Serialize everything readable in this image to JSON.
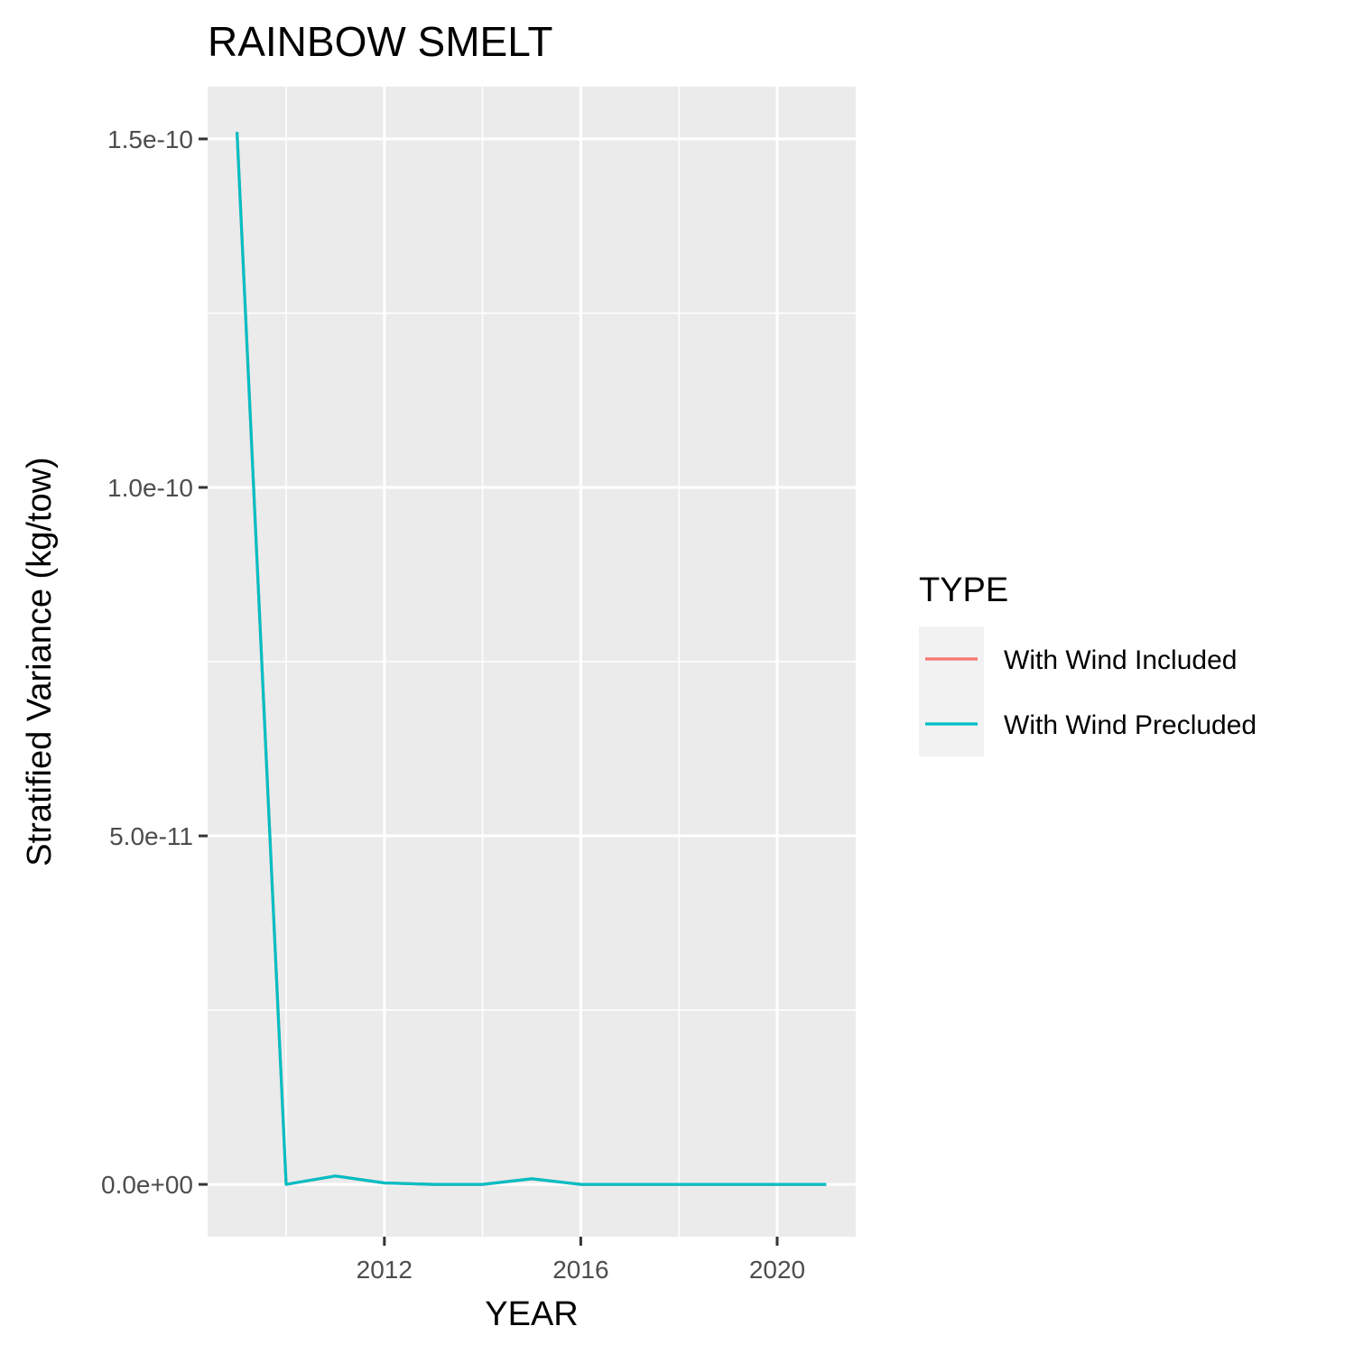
{
  "chart_data": {
    "type": "line",
    "title": "RAINBOW SMELT",
    "xlabel": "YEAR",
    "ylabel": "Stratified Variance (kg/tow)",
    "xlim": [
      2008.4,
      2021.6
    ],
    "ylim": [
      -7.5e-12,
      1.575e-10
    ],
    "x_ticks": [
      2012,
      2016,
      2020
    ],
    "x_tick_labels": [
      "2012",
      "2016",
      "2020"
    ],
    "x_minor": [
      2010,
      2014,
      2018
    ],
    "y_ticks": [
      0,
      5e-11,
      1e-10,
      1.5e-10
    ],
    "y_tick_labels": [
      "0.0e+00",
      "5.0e-11",
      "1.0e-10",
      "1.5e-10"
    ],
    "y_minor": [
      2.5e-11,
      7.5e-11,
      1.25e-10
    ],
    "grid": true,
    "legend": {
      "title": "TYPE",
      "position": "right"
    },
    "x": [
      2009,
      2010,
      2011,
      2012,
      2013,
      2014,
      2015,
      2016,
      2017,
      2018,
      2019,
      2020,
      2021
    ],
    "series": [
      {
        "name": "With Wind Included",
        "color": "#F8766D",
        "values": [
          1.51e-10,
          0,
          1.2e-12,
          2e-13,
          0,
          0,
          8e-13,
          0,
          0,
          0,
          0,
          0,
          0
        ]
      },
      {
        "name": "With Wind Precluded",
        "color": "#00BFC4",
        "values": [
          1.51e-10,
          0,
          1.2e-12,
          2e-13,
          0,
          0,
          8e-13,
          0,
          0,
          0,
          0,
          0,
          0
        ]
      }
    ]
  }
}
